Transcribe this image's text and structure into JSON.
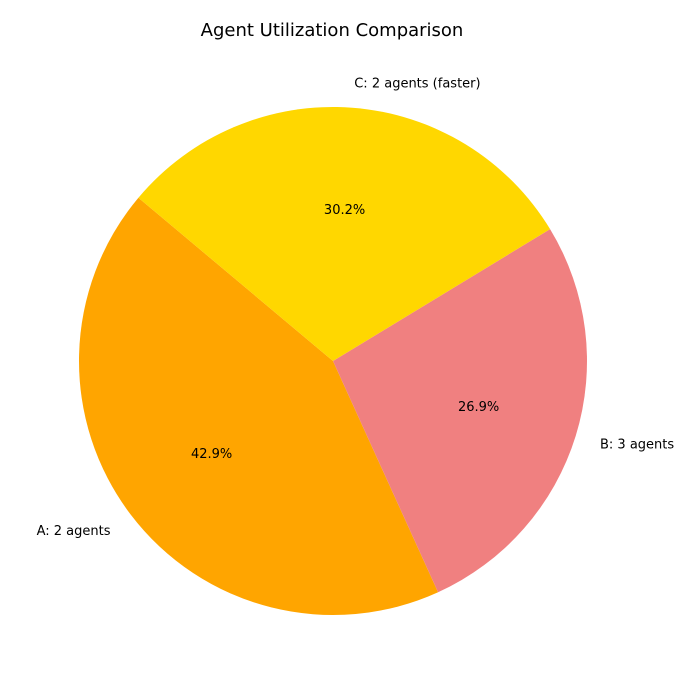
{
  "chart_data": {
    "type": "pie",
    "title": "Agent Utilization Comparison",
    "labels": [
      "A: 2 agents",
      "B: 3 agents",
      "C: 2 agents (faster)"
    ],
    "values": [
      42.9,
      26.9,
      30.2
    ],
    "percent_labels": [
      "42.9%",
      "26.9%",
      "30.2%"
    ],
    "colors": [
      "#FFA500",
      "#F08080",
      "#FFD700"
    ],
    "start_angle_deg": 140,
    "direction": "counterclockwise"
  }
}
